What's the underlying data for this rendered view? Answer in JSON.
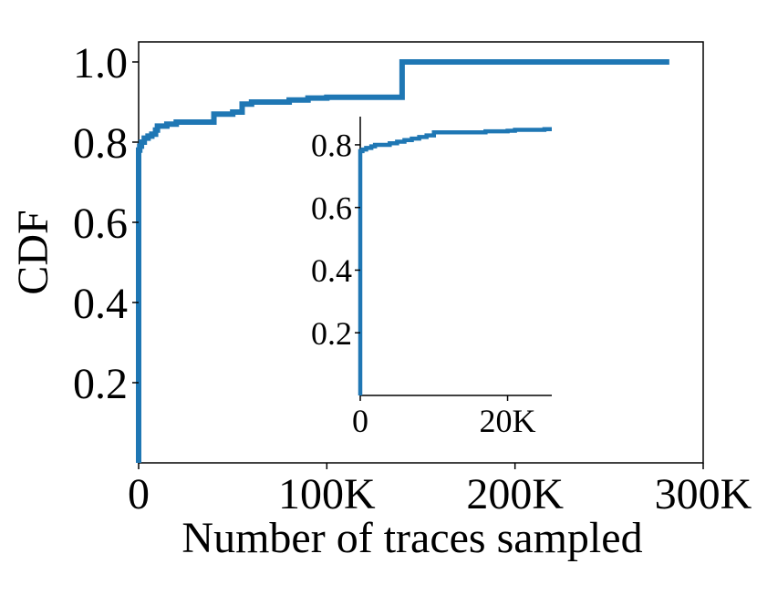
{
  "chart_data": [
    {
      "type": "line",
      "xlabel": "Number of traces sampled",
      "ylabel": "CDF",
      "xlim": [
        0,
        300000
      ],
      "ylim": [
        0,
        1.05
      ],
      "x_ticks": [
        0,
        100000,
        200000,
        300000
      ],
      "x_tick_labels": [
        "0",
        "100K",
        "200K",
        "300K"
      ],
      "y_ticks": [
        0.2,
        0.4,
        0.6,
        0.8,
        1.0
      ],
      "y_tick_labels": [
        "0.2",
        "0.4",
        "0.6",
        "0.8",
        "1.0"
      ],
      "grid": false,
      "step": true,
      "series": [
        {
          "color": "#1f77b4",
          "x": [
            0,
            0,
            600,
            1500,
            3000,
            5000,
            7000,
            9000,
            10000,
            12000,
            15000,
            20000,
            25000,
            30000,
            40000,
            40000,
            45000,
            50000,
            55000,
            55000,
            60000,
            65000,
            70000,
            80000,
            90000,
            92000,
            100000,
            110000,
            120000,
            130000,
            140000,
            140000,
            160000,
            200000,
            240000,
            282000
          ],
          "y": [
            0,
            0.78,
            0.79,
            0.8,
            0.81,
            0.815,
            0.82,
            0.83,
            0.84,
            0.84,
            0.845,
            0.85,
            0.85,
            0.85,
            0.85,
            0.87,
            0.87,
            0.875,
            0.88,
            0.895,
            0.9,
            0.9,
            0.9,
            0.905,
            0.91,
            0.91,
            0.912,
            0.912,
            0.912,
            0.912,
            0.912,
            1.0,
            1.0,
            1.0,
            1.0,
            1.0
          ]
        }
      ]
    },
    {
      "type": "line",
      "inset": true,
      "xlim": [
        0,
        26000
      ],
      "ylim": [
        0,
        0.89
      ],
      "x_ticks": [
        0,
        20000
      ],
      "x_tick_labels": [
        "0",
        "20K"
      ],
      "y_ticks": [
        0.2,
        0.4,
        0.6,
        0.8
      ],
      "y_tick_labels": [
        "0.2",
        "0.4",
        "0.6",
        "0.8"
      ],
      "grid": false,
      "step": true,
      "series": [
        {
          "color": "#1f77b4",
          "x": [
            0,
            0,
            300,
            800,
            1500,
            2000,
            3000,
            4000,
            5000,
            6000,
            7000,
            8000,
            9000,
            10000,
            12000,
            15000,
            17000,
            20000,
            21000,
            25000,
            26000
          ],
          "y": [
            0,
            0.78,
            0.785,
            0.79,
            0.795,
            0.8,
            0.8,
            0.805,
            0.81,
            0.815,
            0.82,
            0.825,
            0.83,
            0.84,
            0.84,
            0.84,
            0.843,
            0.845,
            0.848,
            0.85,
            0.85
          ]
        }
      ]
    }
  ]
}
